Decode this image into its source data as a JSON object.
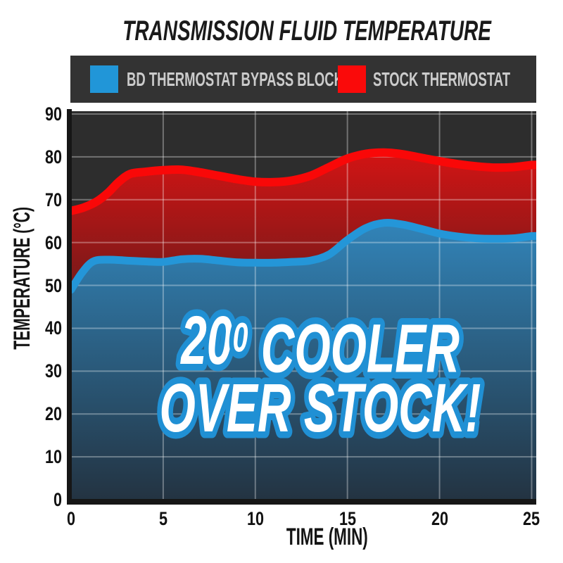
{
  "title": "TRANSMISSION FLUID TEMPERATURE",
  "legend": {
    "background": "#333333",
    "text_color": "#cbcbcb",
    "items": [
      {
        "label": "BD THERMOSTAT BYPASS BLOCK",
        "color": "#2196d8"
      },
      {
        "label": "STOCK THERMOSTAT",
        "color": "#fa0a0a"
      }
    ]
  },
  "overlay": {
    "line1": "20⁰ COOLER",
    "line2": "OVER STOCK!",
    "fill": "#ffffff",
    "outline": "#2090d4"
  },
  "axes": {
    "x_label": "TIME (MIN)",
    "y_label": "TEMPERATURE (°C)"
  },
  "colors": {
    "page_background": "#ffffff",
    "plot_background": "#2d2d2d",
    "gridline": "rgba(255,255,255,0.33)",
    "axis_bar": "#161616",
    "tick_label": "#121212"
  },
  "chart_data": {
    "type": "area",
    "title": "TRANSMISSION FLUID TEMPERATURE",
    "xlabel": "TIME (MIN)",
    "ylabel": "TEMPERATURE (°C)",
    "xlim": [
      0,
      25
    ],
    "ylim": [
      0,
      90
    ],
    "x_ticks": [
      0,
      5,
      10,
      15,
      20,
      25
    ],
    "y_ticks": [
      0,
      10,
      20,
      30,
      40,
      50,
      60,
      70,
      80,
      90
    ],
    "grid": true,
    "legend_position": "top",
    "annotation": "20⁰ COOLER OVER STOCK!",
    "series": [
      {
        "name": "STOCK THERMOSTAT",
        "color": "#f90808",
        "fill_top": "#d31414",
        "fill_bottom": "#6e1a1a",
        "points": [
          [
            0,
            67.4
          ],
          [
            0.7,
            68.2
          ],
          [
            1.4,
            69.6
          ],
          [
            2,
            71.6
          ],
          [
            2.6,
            74.2
          ],
          [
            3.2,
            76
          ],
          [
            4,
            76.5
          ],
          [
            5,
            76.9
          ],
          [
            6,
            77
          ],
          [
            7,
            76.4
          ],
          [
            8,
            75.6
          ],
          [
            9,
            74.8
          ],
          [
            10,
            74.2
          ],
          [
            11,
            74.1
          ],
          [
            12,
            74.5
          ],
          [
            13,
            75.6
          ],
          [
            14,
            77.6
          ],
          [
            15,
            79.6
          ],
          [
            16,
            80.7
          ],
          [
            17,
            81
          ],
          [
            18,
            80.6
          ],
          [
            19,
            79.8
          ],
          [
            20,
            79
          ],
          [
            21,
            78.3
          ],
          [
            22,
            77.8
          ],
          [
            23,
            77.5
          ],
          [
            24,
            77.6
          ],
          [
            25,
            78.1
          ]
        ]
      },
      {
        "name": "BD THERMOSTAT BYPASS BLOCK",
        "color": "#2496d8",
        "fill_top": "#3287bd",
        "fill_bottom": "#233240",
        "points": [
          [
            0,
            49
          ],
          [
            0.6,
            53
          ],
          [
            1.2,
            55.6
          ],
          [
            2,
            56
          ],
          [
            3,
            55.8
          ],
          [
            4,
            55.6
          ],
          [
            5,
            55.5
          ],
          [
            6,
            56.1
          ],
          [
            7,
            56.2
          ],
          [
            8,
            55.8
          ],
          [
            9,
            55.4
          ],
          [
            10,
            55.3
          ],
          [
            11,
            55.3
          ],
          [
            12,
            55.5
          ],
          [
            13,
            55.8
          ],
          [
            14,
            57.2
          ],
          [
            15,
            60.6
          ],
          [
            16,
            63.4
          ],
          [
            17,
            64.6
          ],
          [
            18,
            64.2
          ],
          [
            19,
            63.2
          ],
          [
            20,
            62.1
          ],
          [
            21,
            61.4
          ],
          [
            22,
            61
          ],
          [
            23,
            60.9
          ],
          [
            24,
            61
          ],
          [
            25,
            61.5
          ]
        ]
      }
    ]
  }
}
